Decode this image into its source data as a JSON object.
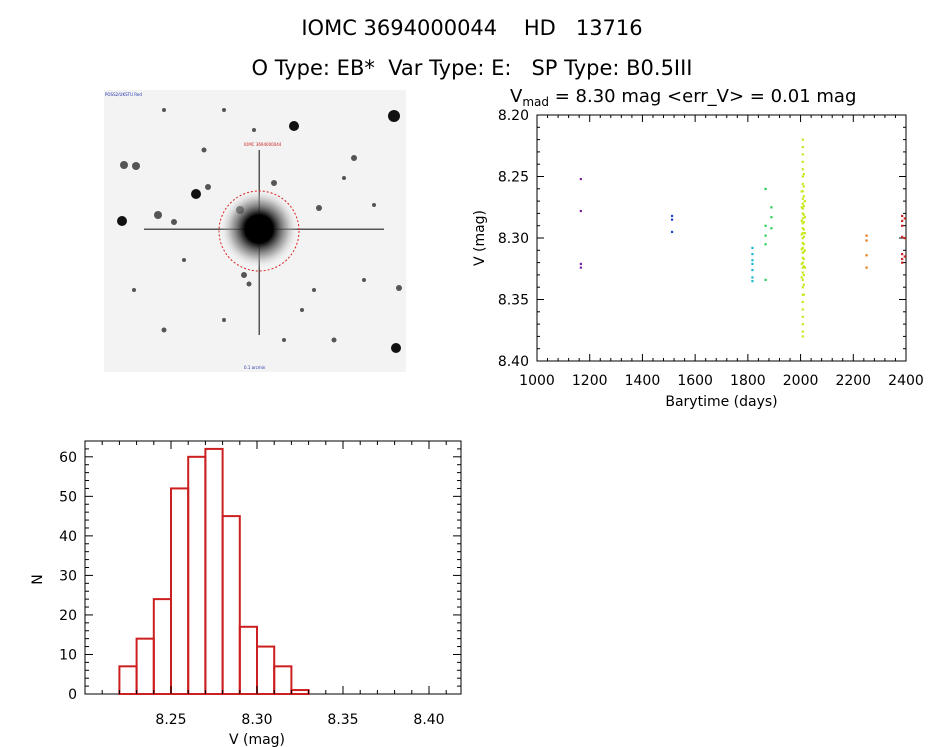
{
  "header": {
    "line1": "IOMC 3694000044    HD   13716",
    "line2": "O Type: EB*  Var Type: E:   SP Type: B0.5III"
  },
  "image_panel": {
    "caption_top_left": "POSS2/UKSTU Red",
    "caption_center": "IOMC 3694000044",
    "caption_bottom": "0.1 arcmin"
  },
  "chart_data": [
    {
      "type": "scatter",
      "title_main": "V",
      "title_sub": "mad",
      "title_rest": " = 8.30 mag <err_V> = 0.01 mag",
      "xlabel": "Barytime (days)",
      "ylabel": "V (mag)",
      "xlim": [
        1000,
        2400
      ],
      "ylim": [
        8.2,
        8.4
      ],
      "y_inverted": true,
      "x_ticks": [
        "1000",
        "1200",
        "1400",
        "1600",
        "1800",
        "2000",
        "2200",
        "2400"
      ],
      "y_ticks": [
        "8.20",
        "8.25",
        "8.30",
        "8.35",
        "8.40"
      ],
      "color_scale": "time-coded: purple → blue → cyan → green → yellow → orange → red",
      "series": [
        {
          "color": "#7b1fa2",
          "points": [
            [
              1166,
              8.252
            ],
            [
              1166,
              8.278
            ],
            [
              1166,
              8.321
            ],
            [
              1166,
              8.324
            ]
          ]
        },
        {
          "color": "#1e40c8",
          "points": [
            [
              1512,
              8.282
            ],
            [
              1512,
              8.285
            ],
            [
              1512,
              8.295
            ]
          ]
        },
        {
          "color": "#19b8d0",
          "points": [
            [
              1817,
              8.308
            ],
            [
              1817,
              8.313
            ],
            [
              1817,
              8.318
            ],
            [
              1817,
              8.321
            ],
            [
              1817,
              8.326
            ],
            [
              1817,
              8.332
            ],
            [
              1817,
              8.335
            ]
          ]
        },
        {
          "color": "#2bcf57",
          "points": [
            [
              1867,
              8.26
            ],
            [
              1867,
              8.29
            ],
            [
              1867,
              8.298
            ],
            [
              1867,
              8.305
            ],
            [
              1867,
              8.334
            ],
            [
              1889,
              8.275
            ],
            [
              1889,
              8.283
            ],
            [
              1889,
              8.292
            ]
          ]
        },
        {
          "color": "#c8e81a",
          "points": [
            [
              2008,
              8.22
            ],
            [
              2008,
              8.226
            ],
            [
              2008,
              8.232
            ],
            [
              2008,
              8.238
            ],
            [
              2008,
              8.244
            ],
            [
              2008,
              8.25
            ],
            [
              2008,
              8.256
            ],
            [
              2008,
              8.262
            ],
            [
              2008,
              8.268
            ],
            [
              2008,
              8.272
            ],
            [
              2008,
              8.276
            ],
            [
              2008,
              8.28
            ],
            [
              2008,
              8.284
            ],
            [
              2008,
              8.288
            ],
            [
              2008,
              8.292
            ],
            [
              2008,
              8.296
            ],
            [
              2008,
              8.3
            ],
            [
              2008,
              8.304
            ],
            [
              2008,
              8.308
            ],
            [
              2008,
              8.312
            ],
            [
              2008,
              8.316
            ],
            [
              2008,
              8.32
            ],
            [
              2008,
              8.324
            ],
            [
              2008,
              8.328
            ],
            [
              2008,
              8.334
            ],
            [
              2008,
              8.34
            ],
            [
              2008,
              8.346
            ],
            [
              2008,
              8.352
            ],
            [
              2008,
              8.358
            ],
            [
              2008,
              8.364
            ],
            [
              2008,
              8.37
            ],
            [
              2008,
              8.376
            ],
            [
              2008,
              8.38
            ],
            [
              2012,
              8.248
            ],
            [
              2012,
              8.258
            ],
            [
              2012,
              8.266
            ],
            [
              2012,
              8.274
            ],
            [
              2012,
              8.281
            ],
            [
              2012,
              8.287
            ],
            [
              2012,
              8.293
            ],
            [
              2012,
              8.299
            ],
            [
              2012,
              8.305
            ],
            [
              2012,
              8.311
            ],
            [
              2012,
              8.317
            ],
            [
              2012,
              8.323
            ],
            [
              2012,
              8.33
            ],
            [
              2012,
              8.338
            ],
            [
              2012,
              8.346
            ],
            [
              2004,
              8.262
            ],
            [
              2004,
              8.275
            ],
            [
              2004,
              8.286
            ],
            [
              2004,
              8.297
            ],
            [
              2004,
              8.309
            ],
            [
              2004,
              8.321
            ],
            [
              2004,
              8.332
            ],
            [
              2016,
              8.27
            ],
            [
              2016,
              8.283
            ],
            [
              2016,
              8.296
            ],
            [
              2016,
              8.31
            ],
            [
              2016,
              8.324
            ]
          ]
        },
        {
          "color": "#e07818",
          "points": [
            [
              2250,
              8.298
            ],
            [
              2250,
              8.302
            ],
            [
              2250,
              8.314
            ],
            [
              2250,
              8.324
            ]
          ]
        },
        {
          "color": "#cc2424",
          "points": [
            [
              2385,
              8.282
            ],
            [
              2385,
              8.286
            ],
            [
              2385,
              8.29
            ],
            [
              2385,
              8.299
            ],
            [
              2385,
              8.313
            ],
            [
              2385,
              8.317
            ],
            [
              2385,
              8.32
            ],
            [
              2395,
              8.284
            ],
            [
              2395,
              8.3
            ],
            [
              2395,
              8.315
            ]
          ]
        }
      ]
    },
    {
      "type": "bar",
      "histogram": true,
      "xlabel": "V (mag)",
      "ylabel": "N",
      "xlim": [
        0.8,
        13.1
      ],
      "ylim": [
        0,
        64
      ],
      "x_ticks": [
        "8.25",
        "8.30",
        "8.35",
        "8.40"
      ],
      "y_ticks": [
        "0",
        "10",
        "20",
        "30",
        "40",
        "50",
        "60"
      ],
      "bar_color": "#cc1f1f",
      "bins": [
        {
          "center": 8.225,
          "value": 7
        },
        {
          "center": 8.235,
          "value": 14
        },
        {
          "center": 8.245,
          "value": 24
        },
        {
          "center": 8.255,
          "value": 52
        },
        {
          "center": 8.265,
          "value": 60
        },
        {
          "center": 8.275,
          "value": 62
        },
        {
          "center": 8.285,
          "value": 45
        },
        {
          "center": 8.295,
          "value": 17
        },
        {
          "center": 8.305,
          "value": 12
        },
        {
          "center": 8.315,
          "value": 7
        },
        {
          "center": 8.325,
          "value": 1
        }
      ]
    }
  ]
}
